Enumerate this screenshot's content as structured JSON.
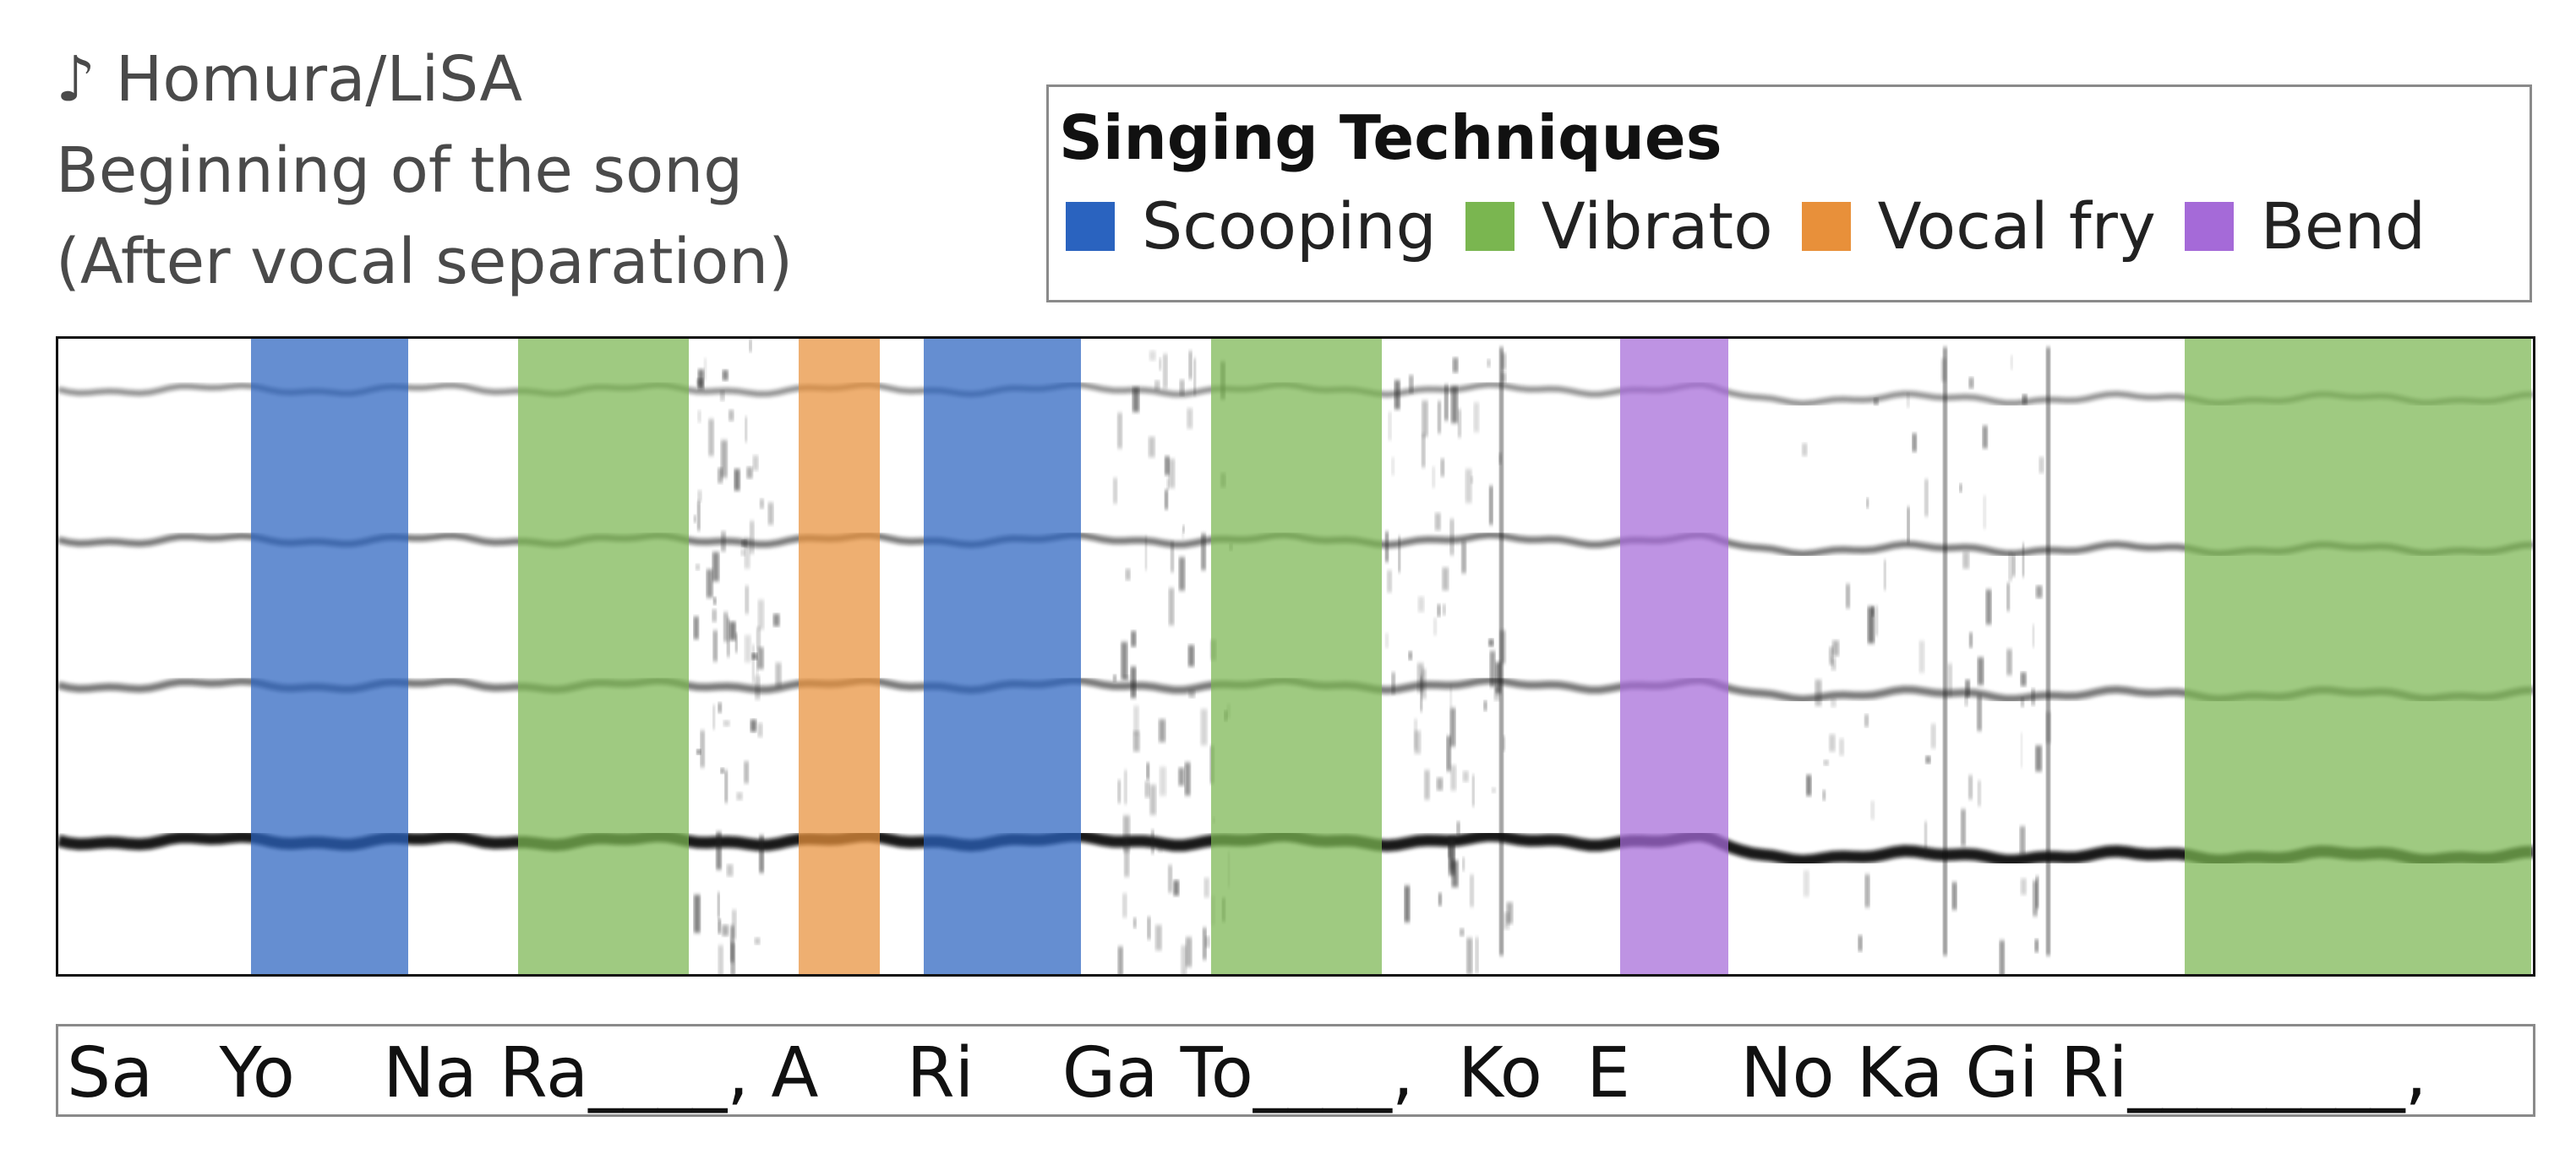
{
  "header": {
    "song": "♪ Homura/LiSA",
    "line2": "Beginning of the song",
    "line3": "(After vocal separation)"
  },
  "legend": {
    "title": "Singing Techniques",
    "items": [
      {
        "label": "Scooping",
        "color": "#2a63bf"
      },
      {
        "label": "Vibrato",
        "color": "#7ab650"
      },
      {
        "label": "Vocal fry",
        "color": "#e8903a"
      },
      {
        "label": "Bend",
        "color": "#a56ad8"
      }
    ]
  },
  "spectrogram": {
    "segments": [
      {
        "technique": "Scooping",
        "color": "#2a63bf"
      },
      {
        "technique": "Vibrato",
        "color": "#7ab650"
      },
      {
        "technique": "Vocal fry",
        "color": "#e8903a"
      },
      {
        "technique": "Scooping",
        "color": "#2a63bf"
      },
      {
        "technique": "Vibrato",
        "color": "#7ab650"
      },
      {
        "technique": "Bend",
        "color": "#a56ad8"
      },
      {
        "technique": "Vibrato",
        "color": "#7ab650"
      }
    ]
  },
  "lyrics": "Sa   Yo    Na Ra____, A    Ri    Ga To____,  Ko  E     No Ka Gi Ri________,"
}
